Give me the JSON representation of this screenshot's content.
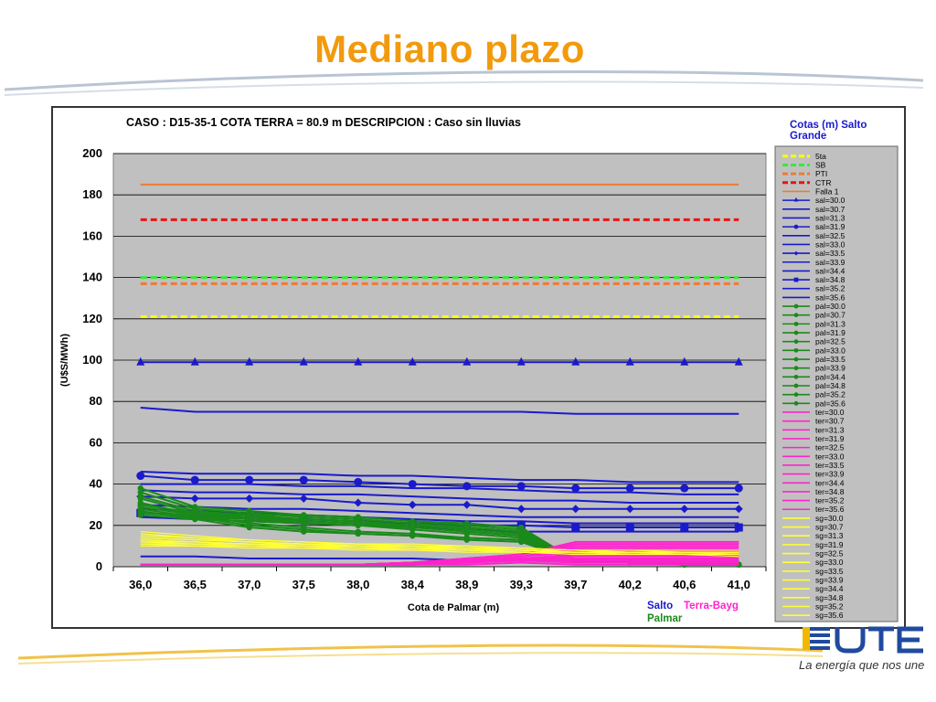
{
  "slide": {
    "title": "Mediano plazo",
    "slogan": "La energía que nos une"
  },
  "chart_data": {
    "type": "line",
    "title": "CASO : D15-35-1 COTA TERRA = 80.9 m  DESCRIPCION :     Caso sin lluvias",
    "xlabel": "Cota de Palmar (m)",
    "ylabel": "(U$S/MWh)",
    "ylim": [
      0,
      200
    ],
    "yticks": [
      0,
      20,
      40,
      60,
      80,
      100,
      120,
      140,
      160,
      180,
      200
    ],
    "categories": [
      "36,0",
      "36,5",
      "37,0",
      "37,5",
      "38,0",
      "38,4",
      "38,9",
      "39,3",
      "39,7",
      "40,2",
      "40,6",
      "41,0"
    ],
    "grid": true,
    "legend_title": "Cotas (m) Salto Grande",
    "legend_position": "right",
    "footer_labels": [
      {
        "text": "Salto",
        "color": "#1a1acc"
      },
      {
        "text": "Terra-Bayg",
        "color": "#ff22cc"
      },
      {
        "text": "Palmar",
        "color": "#1a8a1a"
      }
    ],
    "series": [
      {
        "name": "5ta",
        "color": "#ffff00",
        "dash": true,
        "values": [
          121,
          121,
          121,
          121,
          121,
          121,
          121,
          121,
          121,
          121,
          121,
          121
        ]
      },
      {
        "name": "SB",
        "color": "#33ee33",
        "dash": true,
        "values": [
          140,
          140,
          140,
          140,
          140,
          140,
          140,
          140,
          140,
          140,
          140,
          140
        ]
      },
      {
        "name": "PTI",
        "color": "#f07a30",
        "dash": true,
        "values": [
          137,
          137,
          137,
          137,
          137,
          137,
          137,
          137,
          137,
          137,
          137,
          137
        ]
      },
      {
        "name": "CTR",
        "color": "#ee1111",
        "dash": true,
        "values": [
          168,
          168,
          168,
          168,
          168,
          168,
          168,
          168,
          168,
          168,
          168,
          168
        ]
      },
      {
        "name": "Falla 1",
        "color": "#f07a30",
        "values": [
          185,
          185,
          185,
          185,
          185,
          185,
          185,
          185,
          185,
          185,
          185,
          185
        ]
      },
      {
        "name": "sal=30.0",
        "color": "#1a1acc",
        "marker": "triangle",
        "values": [
          99,
          99,
          99,
          99,
          99,
          99,
          99,
          99,
          99,
          99,
          99,
          99
        ]
      },
      {
        "name": "sal=30.7",
        "color": "#1a1acc",
        "values": [
          77,
          75,
          75,
          75,
          75,
          75,
          75,
          75,
          74,
          74,
          74,
          74
        ]
      },
      {
        "name": "sal=31.3",
        "color": "#1a1acc",
        "values": [
          46,
          45,
          45,
          45,
          44,
          44,
          43,
          42,
          42,
          41,
          41,
          41
        ]
      },
      {
        "name": "sal=31.9",
        "color": "#1a1acc",
        "marker": "circle",
        "values": [
          44,
          42,
          42,
          42,
          41,
          40,
          39,
          39,
          38,
          38,
          38,
          38
        ]
      },
      {
        "name": "sal=32.5",
        "color": "#1a1acc",
        "values": [
          40,
          40,
          40,
          39,
          39,
          38,
          38,
          37,
          36,
          36,
          35,
          35
        ]
      },
      {
        "name": "sal=33.0",
        "color": "#1a1acc",
        "values": [
          37,
          36,
          36,
          35,
          35,
          34,
          33,
          32,
          32,
          31,
          31,
          31
        ]
      },
      {
        "name": "sal=33.5",
        "color": "#1a1acc",
        "marker": "diamond",
        "values": [
          34,
          33,
          33,
          33,
          31,
          30,
          30,
          28,
          28,
          28,
          28,
          28
        ]
      },
      {
        "name": "sal=33.9",
        "color": "#1a1acc",
        "values": [
          30,
          29,
          28,
          28,
          27,
          26,
          25,
          24,
          24,
          24,
          24,
          24
        ]
      },
      {
        "name": "sal=34.4",
        "color": "#1a1acc",
        "values": [
          28,
          27,
          26,
          25,
          24,
          23,
          22,
          22,
          21,
          21,
          21,
          21
        ]
      },
      {
        "name": "sal=34.8",
        "color": "#1a1acc",
        "marker": "square",
        "values": [
          26,
          25,
          24,
          23,
          22,
          21,
          20,
          20,
          19,
          19,
          19,
          19
        ]
      },
      {
        "name": "sal=35.2",
        "color": "#1a1acc",
        "values": [
          24,
          23,
          22,
          21,
          20,
          19,
          18,
          17,
          17,
          17,
          17,
          17
        ]
      },
      {
        "name": "sal=35.6",
        "color": "#1a1acc",
        "values": [
          5,
          5,
          4,
          4,
          4,
          4,
          3,
          3,
          3,
          3,
          3,
          3
        ]
      },
      {
        "name": "pal=30.0",
        "color": "#1a8a1a",
        "marker": "circle",
        "values": [
          38,
          29,
          27,
          25,
          24,
          22,
          20,
          18,
          3,
          2,
          1,
          1
        ]
      },
      {
        "name": "pal=30.7",
        "color": "#1a8a1a",
        "marker": "circle",
        "values": [
          36,
          28,
          26,
          24,
          23,
          21,
          19,
          17,
          3,
          2,
          1,
          1
        ]
      },
      {
        "name": "pal=31.3",
        "color": "#1a8a1a",
        "marker": "circle",
        "values": [
          34,
          27,
          25,
          23,
          22,
          20,
          18,
          16,
          3,
          2,
          1,
          1
        ]
      },
      {
        "name": "pal=31.9",
        "color": "#1a8a1a",
        "marker": "circle",
        "values": [
          33,
          26,
          24,
          22,
          21,
          19,
          17,
          15,
          3,
          2,
          1,
          1
        ]
      },
      {
        "name": "pal=32.5",
        "color": "#1a8a1a",
        "marker": "circle",
        "values": [
          31,
          25,
          23,
          21,
          20,
          18,
          16,
          14,
          3,
          2,
          1,
          1
        ]
      },
      {
        "name": "pal=33.0",
        "color": "#1a8a1a",
        "marker": "circle",
        "values": [
          30,
          26,
          25,
          25,
          24,
          22,
          21,
          19,
          3,
          2,
          1,
          1
        ]
      },
      {
        "name": "pal=33.5",
        "color": "#1a8a1a",
        "marker": "circle",
        "values": [
          29,
          25,
          21,
          19,
          17,
          16,
          14,
          13,
          3,
          2,
          1,
          1
        ]
      },
      {
        "name": "pal=33.9",
        "color": "#1a8a1a",
        "marker": "circle",
        "values": [
          28,
          24,
          20,
          18,
          16,
          15,
          13,
          12,
          3,
          2,
          1,
          1
        ]
      },
      {
        "name": "pal=34.4",
        "color": "#1a8a1a",
        "marker": "circle",
        "values": [
          27,
          23,
          19,
          17,
          16,
          15,
          14,
          13,
          3,
          2,
          1,
          1
        ]
      },
      {
        "name": "pal=34.8",
        "color": "#1a8a1a",
        "marker": "circle",
        "values": [
          26,
          25,
          24,
          23,
          22,
          20,
          19,
          17,
          3,
          2,
          1,
          1
        ]
      },
      {
        "name": "pal=35.2",
        "color": "#1a8a1a",
        "marker": "circle",
        "values": [
          26,
          24,
          23,
          22,
          21,
          20,
          18,
          16,
          3,
          2,
          1,
          1
        ]
      },
      {
        "name": "pal=35.6",
        "color": "#1a8a1a",
        "marker": "circle",
        "values": [
          25,
          23,
          22,
          21,
          20,
          19,
          17,
          15,
          3,
          2,
          1,
          1
        ]
      },
      {
        "name": "ter=30.0",
        "color": "#ff22cc",
        "values": [
          1,
          1,
          1,
          1,
          1,
          2,
          4,
          6,
          12,
          12,
          12,
          12
        ]
      },
      {
        "name": "ter=30.7",
        "color": "#ff22cc",
        "values": [
          1,
          1,
          1,
          1,
          1,
          2,
          4,
          6,
          11,
          11,
          11,
          11
        ]
      },
      {
        "name": "ter=31.3",
        "color": "#ff22cc",
        "values": [
          1,
          1,
          1,
          1,
          1,
          2,
          4,
          6,
          10,
          10,
          10,
          10
        ]
      },
      {
        "name": "ter=31.9",
        "color": "#ff22cc",
        "values": [
          1,
          1,
          1,
          1,
          1,
          2,
          3,
          5,
          9,
          9,
          9,
          9
        ]
      },
      {
        "name": "ter=32.5",
        "color": "#ff22cc",
        "values": [
          1,
          1,
          1,
          1,
          1,
          2,
          3,
          5,
          8,
          8,
          8,
          8
        ]
      },
      {
        "name": "ter=33.0",
        "color": "#ff22cc",
        "values": [
          1,
          1,
          1,
          1,
          1,
          2,
          3,
          5,
          7,
          7,
          7,
          7
        ]
      },
      {
        "name": "ter=33.5",
        "color": "#ff22cc",
        "values": [
          1,
          1,
          1,
          1,
          1,
          2,
          3,
          4,
          6,
          6,
          6,
          6
        ]
      },
      {
        "name": "ter=33.9",
        "color": "#ff22cc",
        "values": [
          1,
          1,
          1,
          1,
          1,
          1,
          3,
          4,
          5,
          5,
          5,
          5
        ]
      },
      {
        "name": "ter=34.4",
        "color": "#ff22cc",
        "values": [
          1,
          1,
          1,
          1,
          1,
          1,
          2,
          4,
          4,
          4,
          4,
          4
        ]
      },
      {
        "name": "ter=34.8",
        "color": "#ff22cc",
        "values": [
          1,
          1,
          1,
          1,
          1,
          1,
          2,
          3,
          3,
          3,
          3,
          3
        ]
      },
      {
        "name": "ter=35.2",
        "color": "#ff22cc",
        "values": [
          1,
          1,
          1,
          1,
          1,
          1,
          2,
          3,
          2,
          2,
          2,
          2
        ]
      },
      {
        "name": "ter=35.6",
        "color": "#ff22cc",
        "values": [
          1,
          1,
          1,
          1,
          1,
          1,
          1,
          2,
          1,
          1,
          1,
          1
        ]
      },
      {
        "name": "sg=30.0",
        "color": "#ffff33",
        "values": [
          17,
          15,
          13,
          12,
          11,
          11,
          10,
          9,
          8,
          8,
          8,
          8
        ]
      },
      {
        "name": "sg=30.7",
        "color": "#ffff33",
        "values": [
          16,
          14,
          13,
          12,
          11,
          10,
          10,
          9,
          8,
          8,
          7,
          7
        ]
      },
      {
        "name": "sg=31.3",
        "color": "#ffff33",
        "values": [
          15,
          14,
          12,
          11,
          11,
          10,
          9,
          9,
          8,
          7,
          7,
          7
        ]
      },
      {
        "name": "sg=31.9",
        "color": "#ffff33",
        "values": [
          14,
          13,
          12,
          11,
          10,
          10,
          9,
          8,
          8,
          7,
          7,
          7
        ]
      },
      {
        "name": "sg=32.5",
        "color": "#ffff33",
        "values": [
          14,
          13,
          12,
          11,
          10,
          10,
          9,
          8,
          7,
          7,
          7,
          7
        ]
      },
      {
        "name": "sg=33.0",
        "color": "#ffff33",
        "values": [
          13,
          12,
          11,
          11,
          10,
          9,
          9,
          8,
          7,
          7,
          7,
          6
        ]
      },
      {
        "name": "sg=33.5",
        "color": "#ffff33",
        "values": [
          13,
          12,
          11,
          10,
          10,
          9,
          8,
          8,
          7,
          7,
          6,
          6
        ]
      },
      {
        "name": "sg=33.9",
        "color": "#ffff33",
        "values": [
          12,
          12,
          11,
          10,
          9,
          9,
          8,
          8,
          7,
          7,
          6,
          6
        ]
      },
      {
        "name": "sg=34.4",
        "color": "#ffff33",
        "values": [
          12,
          11,
          11,
          10,
          9,
          9,
          8,
          7,
          7,
          6,
          6,
          6
        ]
      },
      {
        "name": "sg=34.8",
        "color": "#ffff33",
        "values": [
          11,
          11,
          10,
          10,
          9,
          8,
          8,
          7,
          7,
          6,
          6,
          6
        ]
      },
      {
        "name": "sg=35.2",
        "color": "#ffff33",
        "values": [
          11,
          10,
          10,
          9,
          9,
          8,
          8,
          7,
          6,
          6,
          6,
          6
        ]
      },
      {
        "name": "sg=35.6",
        "color": "#ffff33",
        "values": [
          10,
          10,
          9,
          9,
          8,
          8,
          7,
          7,
          6,
          6,
          6,
          5
        ]
      }
    ]
  }
}
